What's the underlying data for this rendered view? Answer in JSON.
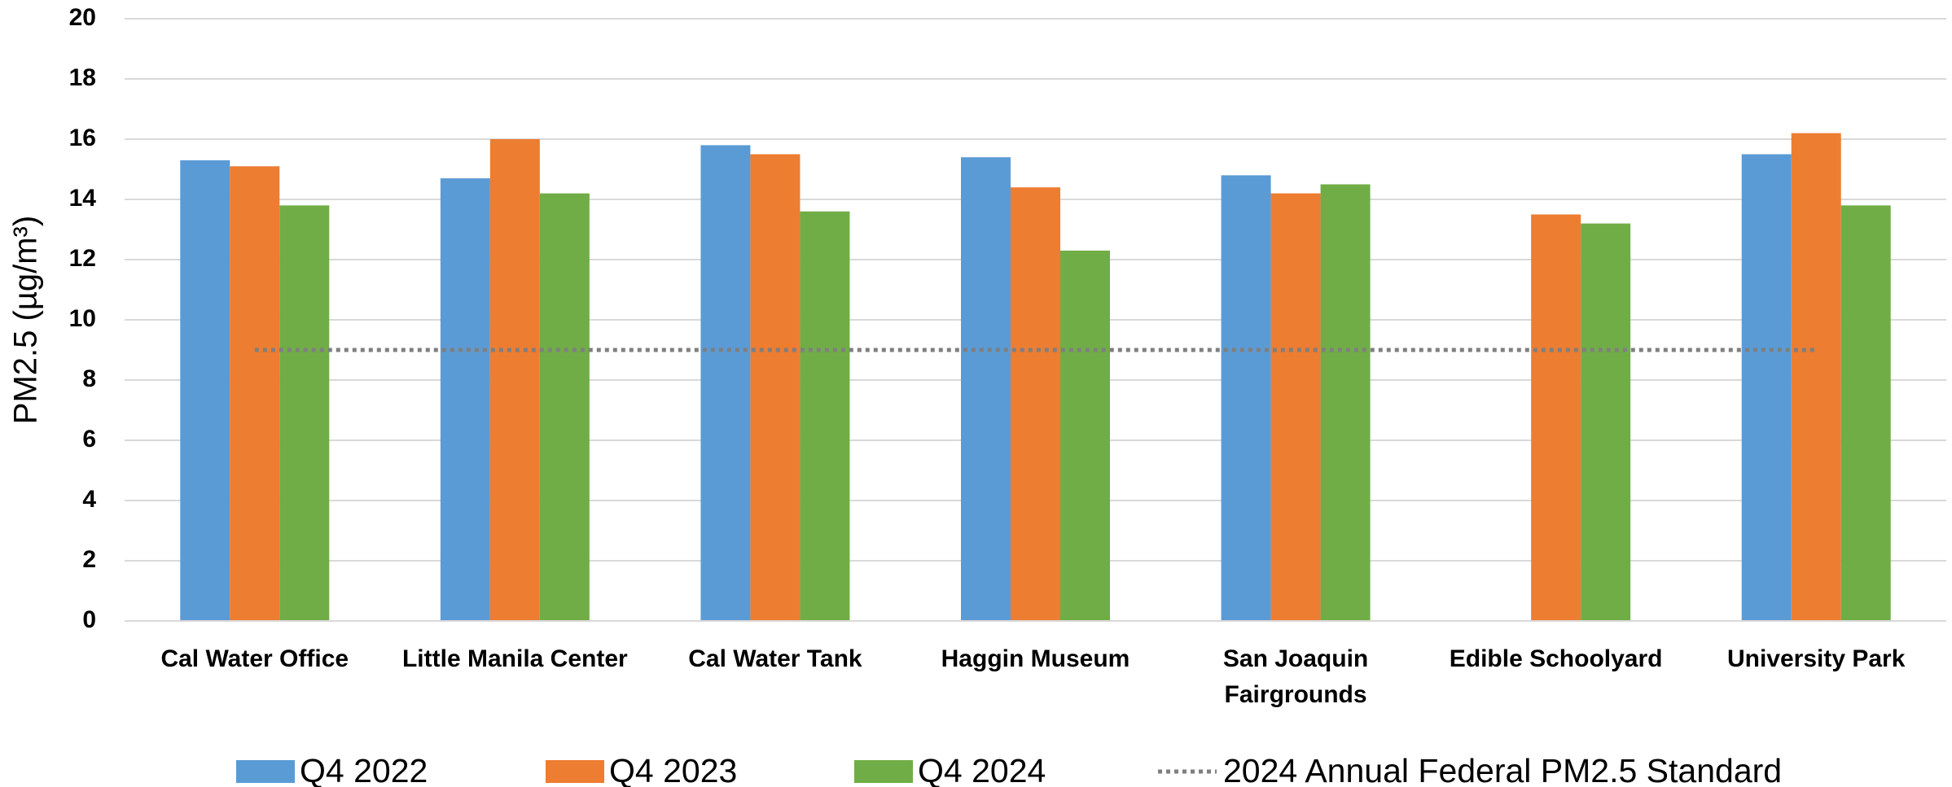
{
  "chart_data": {
    "type": "bar",
    "y_label": "PM2.5 (µg/m³)",
    "categories": [
      "Cal Water Office",
      "Little Manila Center",
      "Cal Water Tank",
      "Haggin Museum",
      "San Joaquin Fairgrounds",
      "Edible Schoolyard",
      "University Park"
    ],
    "series": [
      {
        "name": "Q4 2022",
        "color": "#5b9bd5",
        "values": [
          15.3,
          14.7,
          15.8,
          15.4,
          14.8,
          null,
          15.5
        ]
      },
      {
        "name": "Q4 2023",
        "color": "#ed7d31",
        "values": [
          15.1,
          16.0,
          15.5,
          14.4,
          14.2,
          13.5,
          16.2
        ]
      },
      {
        "name": "Q4 2024",
        "color": "#70ad47",
        "values": [
          13.8,
          14.2,
          13.6,
          12.3,
          14.5,
          13.2,
          13.8
        ]
      }
    ],
    "reference_line": {
      "name": "2024 Annual Federal PM2.5 Standard",
      "value": 9,
      "color": "#7f7f7f"
    },
    "ylim": [
      0,
      20
    ],
    "yticks": [
      0,
      2,
      4,
      6,
      8,
      10,
      12,
      14,
      16,
      18,
      20
    ],
    "grid": true,
    "legend": "bottom"
  }
}
